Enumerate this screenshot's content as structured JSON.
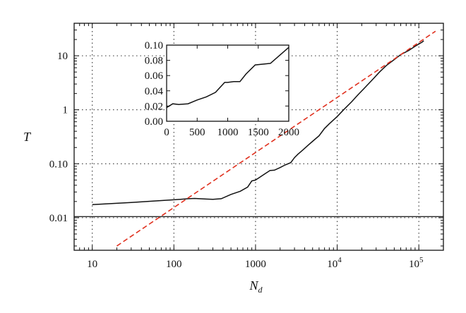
{
  "chart_data": [
    {
      "type": "line",
      "xlabel": "N",
      "xlabel_subscript": "d",
      "ylabel": "T",
      "x_scale": "log",
      "y_scale": "log",
      "xlim": [
        6,
        200000
      ],
      "ylim": [
        0.0025,
        40
      ],
      "grid": true,
      "x_ticks": [
        {
          "value": 10,
          "base": "10",
          "exp": ""
        },
        {
          "value": 100,
          "base": "100",
          "exp": ""
        },
        {
          "value": 1000,
          "base": "1000",
          "exp": ""
        },
        {
          "value": 10000,
          "base": "10",
          "exp": "4"
        },
        {
          "value": 100000,
          "base": "10",
          "exp": "5"
        }
      ],
      "y_ticks": [
        {
          "value": 0.01,
          "label": "0.01"
        },
        {
          "value": 0.1,
          "label": "0.10"
        },
        {
          "value": 1,
          "label": "1"
        },
        {
          "value": 10,
          "label": "10"
        }
      ],
      "reference_line_y": 0.0105,
      "series": [
        {
          "color": "#111111",
          "style": "solid",
          "points": [
            [
              10,
              0.0175
            ],
            [
              30,
              0.0192
            ],
            [
              60,
              0.0205
            ],
            [
              100,
              0.0215
            ],
            [
              150,
              0.0225
            ],
            [
              180,
              0.0228
            ],
            [
              250,
              0.0222
            ],
            [
              300,
              0.022
            ],
            [
              380,
              0.0225
            ],
            [
              500,
              0.027
            ],
            [
              650,
              0.031
            ],
            [
              800,
              0.037
            ],
            [
              900,
              0.048
            ],
            [
              1000,
              0.05
            ],
            [
              1100,
              0.055
            ],
            [
              1300,
              0.065
            ],
            [
              1500,
              0.075
            ],
            [
              1700,
              0.076
            ],
            [
              2000,
              0.085
            ],
            [
              2300,
              0.095
            ],
            [
              2700,
              0.105
            ],
            [
              3000,
              0.13
            ],
            [
              3300,
              0.15
            ],
            [
              3800,
              0.18
            ],
            [
              4400,
              0.22
            ],
            [
              5000,
              0.26
            ],
            [
              6000,
              0.33
            ],
            [
              7000,
              0.45
            ],
            [
              8000,
              0.55
            ],
            [
              10000,
              0.75
            ],
            [
              12000,
              1.0
            ],
            [
              15000,
              1.4
            ],
            [
              18000,
              1.9
            ],
            [
              22000,
              2.6
            ],
            [
              27000,
              3.6
            ],
            [
              33000,
              5.0
            ],
            [
              40000,
              6.6
            ],
            [
              50000,
              8.5
            ],
            [
              60000,
              10.5
            ],
            [
              75000,
              12.5
            ],
            [
              90000,
              15.0
            ],
            [
              110000,
              18.0
            ],
            [
              115000,
              19.0
            ]
          ]
        },
        {
          "color": "#e0301e",
          "style": "dashed",
          "points": [
            [
              20,
              0.003
            ],
            [
              160000,
              28.5
            ]
          ]
        }
      ]
    },
    {
      "type": "line",
      "inset": true,
      "xlim": [
        0,
        2000
      ],
      "ylim": [
        0,
        0.1
      ],
      "grid": false,
      "x_ticks": [
        {
          "value": 0,
          "label": "0"
        },
        {
          "value": 500,
          "label": "500"
        },
        {
          "value": 1000,
          "label": "1000"
        },
        {
          "value": 1500,
          "label": "1500"
        },
        {
          "value": 2000,
          "label": "2000"
        }
      ],
      "y_ticks": [
        {
          "value": 0.0,
          "label": "0.00"
        },
        {
          "value": 0.02,
          "label": "0.02"
        },
        {
          "value": 0.04,
          "label": "0.04"
        },
        {
          "value": 0.06,
          "label": "0.06"
        },
        {
          "value": 0.08,
          "label": "0.08"
        },
        {
          "value": 0.1,
          "label": "0.10"
        }
      ],
      "series": [
        {
          "color": "#111111",
          "style": "solid",
          "points": [
            [
              0,
              0.018
            ],
            [
              100,
              0.023
            ],
            [
              200,
              0.022
            ],
            [
              350,
              0.023
            ],
            [
              500,
              0.028
            ],
            [
              650,
              0.032
            ],
            [
              800,
              0.038
            ],
            [
              950,
              0.051
            ],
            [
              1000,
              0.051
            ],
            [
              1100,
              0.052
            ],
            [
              1200,
              0.052
            ],
            [
              1300,
              0.062
            ],
            [
              1450,
              0.074
            ],
            [
              1700,
              0.076
            ],
            [
              2000,
              0.097
            ]
          ]
        }
      ]
    }
  ]
}
